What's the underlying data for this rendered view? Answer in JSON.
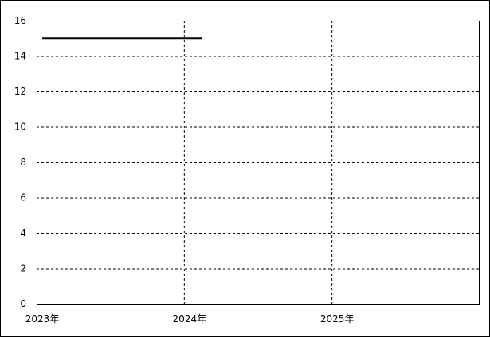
{
  "chart_data": {
    "type": "line",
    "title": "",
    "xlabel": "",
    "ylabel": "",
    "xlim": [
      "2023-01-01",
      "2026-01-01"
    ],
    "ylim": [
      0,
      16
    ],
    "y_ticks": [
      0,
      2,
      4,
      6,
      8,
      10,
      12,
      14,
      16
    ],
    "x_ticks": [
      {
        "date": "2023-01-01",
        "label": "2023年"
      },
      {
        "date": "2024-01-01",
        "label": "2024年"
      },
      {
        "date": "2025-01-01",
        "label": "2025年"
      }
    ],
    "grid": true,
    "grid_style": "dashed",
    "series": [
      {
        "color": "#000000",
        "points": [
          {
            "x": "2023-01-15",
            "y": 15
          },
          {
            "x": "2024-02-15",
            "y": 15
          }
        ]
      }
    ]
  }
}
